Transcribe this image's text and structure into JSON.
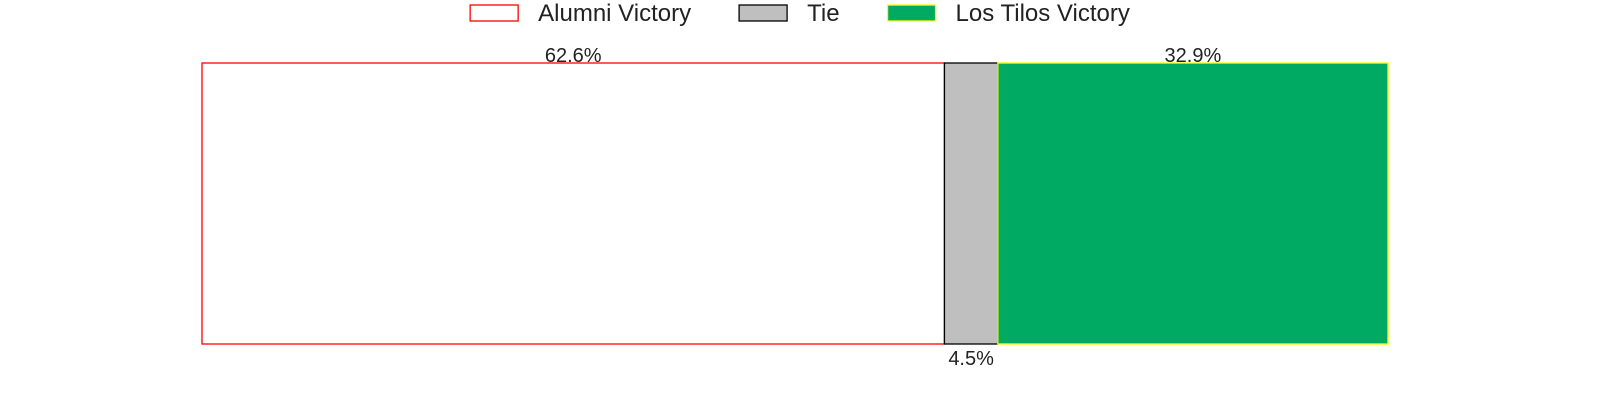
{
  "chart_data": {
    "type": "bar",
    "orientation": "horizontal",
    "stacked": true,
    "normalized": "percent",
    "legend_placement": "top-center",
    "grid": false,
    "axes_visible": false,
    "series": [
      {
        "name": "Alumni Victory",
        "value": 62.6,
        "label": "62.6%",
        "fill": "#ffffff",
        "stroke": "#ff0000",
        "label_position": "top"
      },
      {
        "name": "Tie",
        "value": 4.5,
        "label": "4.5%",
        "fill": "#bfbfbf",
        "stroke": "#000000",
        "label_position": "bottom"
      },
      {
        "name": "Los Tilos Victory",
        "value": 32.9,
        "label": "32.9%",
        "fill": "#00aa63",
        "stroke": "#ffff00",
        "label_position": "top"
      }
    ]
  }
}
